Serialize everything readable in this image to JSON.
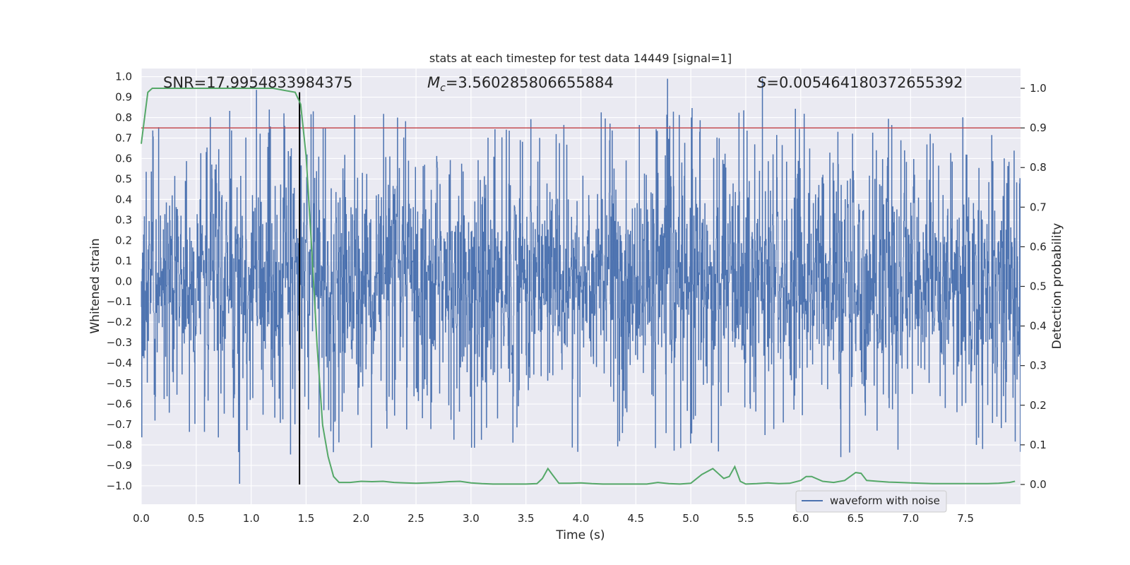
{
  "chart_data": {
    "type": "line",
    "title": "stats at each timestep for test data 14449 [signal=1]",
    "xlabel": "Time (s)",
    "ylabel_left": "Whitened strain",
    "ylabel_right": "Detection probability",
    "xlim": [
      0.0,
      8.0
    ],
    "ylim_left": [
      -1.09,
      1.04
    ],
    "ylim_right": [
      -0.05,
      1.05
    ],
    "x_ticks": [
      "0.0",
      "0.5",
      "1.0",
      "1.5",
      "2.0",
      "2.5",
      "3.0",
      "3.5",
      "4.0",
      "4.5",
      "5.0",
      "5.5",
      "6.0",
      "6.5",
      "7.0",
      "7.5"
    ],
    "y_ticks_left": [
      "1.0",
      "0.9",
      "0.8",
      "0.7",
      "0.6",
      "0.5",
      "0.4",
      "0.3",
      "0.2",
      "0.1",
      "0.0",
      "-0.1",
      "-0.2",
      "-0.3",
      "-0.4",
      "-0.5",
      "-0.6",
      "-0.7",
      "-0.8",
      "-0.9",
      "-1.0"
    ],
    "y_ticks_right": [
      "1.0",
      "0.9",
      "0.8",
      "0.7",
      "0.6",
      "0.5",
      "0.4",
      "0.3",
      "0.2",
      "0.1",
      "0.0"
    ],
    "annotations": {
      "snr": "SNR=17.9954833984375",
      "mc_symbol": "M",
      "mc_sub": "c",
      "mc_value": "=3.560285806655884",
      "s_symbol": "S",
      "s_value": "=0.005464180372655392"
    },
    "threshold": 0.9,
    "marker_time": 1.44,
    "legend": [
      "waveform with noise"
    ],
    "colors": {
      "background": "#eaeaf2",
      "grid": "#ffffff",
      "waveform": "#4c72b0",
      "probability": "#55a868",
      "threshold": "#c44e52",
      "marker": "#000000"
    },
    "series": [
      {
        "name": "Detection probability",
        "axis": "right",
        "x": [
          0.0,
          0.06,
          0.1,
          0.2,
          0.3,
          0.4,
          0.5,
          0.6,
          0.7,
          0.8,
          0.9,
          1.0,
          1.1,
          1.2,
          1.3,
          1.4,
          1.45,
          1.5,
          1.55,
          1.6,
          1.65,
          1.7,
          1.75,
          1.8,
          1.9,
          2.0,
          2.1,
          2.2,
          2.3,
          2.4,
          2.5,
          2.6,
          2.7,
          2.8,
          2.9,
          3.0,
          3.1,
          3.2,
          3.3,
          3.4,
          3.5,
          3.6,
          3.65,
          3.7,
          3.74,
          3.8,
          3.9,
          4.0,
          4.1,
          4.2,
          4.3,
          4.4,
          4.5,
          4.6,
          4.7,
          4.8,
          4.9,
          5.0,
          5.1,
          5.2,
          5.3,
          5.35,
          5.4,
          5.45,
          5.5,
          5.6,
          5.7,
          5.8,
          5.9,
          6.0,
          6.05,
          6.1,
          6.2,
          6.3,
          6.4,
          6.5,
          6.55,
          6.6,
          6.7,
          6.8,
          6.9,
          7.0,
          7.1,
          7.2,
          7.3,
          7.4,
          7.5,
          7.6,
          7.7,
          7.8,
          7.9,
          7.95
        ],
        "values": [
          0.86,
          0.99,
          1.0,
          1.0,
          1.0,
          1.0,
          1.0,
          1.0,
          1.0,
          1.0,
          1.0,
          1.0,
          1.0,
          1.0,
          0.995,
          0.99,
          0.96,
          0.83,
          0.6,
          0.35,
          0.15,
          0.07,
          0.02,
          0.005,
          0.005,
          0.008,
          0.007,
          0.008,
          0.005,
          0.004,
          0.003,
          0.004,
          0.005,
          0.007,
          0.008,
          0.004,
          0.002,
          0.001,
          0.001,
          0.001,
          0.001,
          0.002,
          0.015,
          0.04,
          0.025,
          0.003,
          0.003,
          0.004,
          0.002,
          0.001,
          0.001,
          0.001,
          0.001,
          0.001,
          0.005,
          0.002,
          0.001,
          0.003,
          0.025,
          0.04,
          0.015,
          0.02,
          0.045,
          0.008,
          0.001,
          0.002,
          0.004,
          0.002,
          0.003,
          0.01,
          0.02,
          0.02,
          0.008,
          0.005,
          0.01,
          0.03,
          0.028,
          0.01,
          0.008,
          0.006,
          0.005,
          0.004,
          0.003,
          0.002,
          0.002,
          0.002,
          0.002,
          0.002,
          0.002,
          0.003,
          0.005,
          0.008
        ]
      }
    ]
  }
}
